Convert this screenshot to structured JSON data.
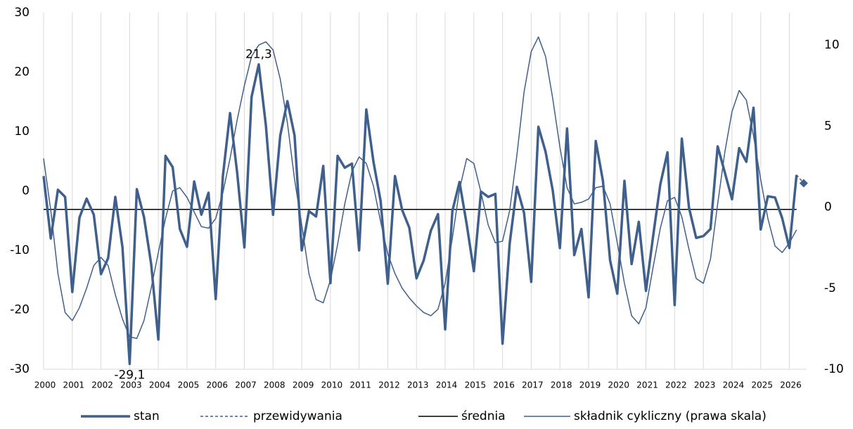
{
  "chart_data": {
    "type": "line",
    "x": [
      2000,
      2000.25,
      2000.5,
      2000.75,
      2001,
      2001.25,
      2001.5,
      2001.75,
      2002,
      2002.25,
      2002.5,
      2002.75,
      2003,
      2003.25,
      2003.5,
      2003.75,
      2004,
      2004.25,
      2004.5,
      2004.75,
      2005,
      2005.25,
      2005.5,
      2005.75,
      2006,
      2006.25,
      2006.5,
      2006.75,
      2007,
      2007.25,
      2007.5,
      2007.75,
      2008,
      2008.25,
      2008.5,
      2008.75,
      2009,
      2009.25,
      2009.5,
      2009.75,
      2010,
      2010.25,
      2010.5,
      2010.75,
      2011,
      2011.25,
      2011.5,
      2011.75,
      2012,
      2012.25,
      2012.5,
      2012.75,
      2013,
      2013.25,
      2013.5,
      2013.75,
      2014,
      2014.25,
      2014.5,
      2014.75,
      2015,
      2015.25,
      2015.5,
      2015.75,
      2016,
      2016.25,
      2016.5,
      2016.75,
      2017,
      2017.25,
      2017.5,
      2017.75,
      2018,
      2018.25,
      2018.5,
      2018.75,
      2019,
      2019.25,
      2019.5,
      2019.75,
      2020,
      2020.25,
      2020.5,
      2020.75,
      2021,
      2021.25,
      2021.5,
      2021.75,
      2022,
      2022.25,
      2022.5,
      2022.75,
      2023,
      2023.25,
      2023.5,
      2023.75,
      2024,
      2024.25,
      2024.5,
      2024.75,
      2025,
      2025.25,
      2025.5,
      2025.75,
      2026,
      2026.25,
      2026.5
    ],
    "series": [
      {
        "name": "stan",
        "color": "#3f5f8c",
        "width": 3.5,
        "values": [
          2.5,
          -8,
          0.2,
          -1,
          -17,
          -4.5,
          -1.3,
          -4,
          -14,
          -11.3,
          -1,
          -9.5,
          -29.1,
          0.3,
          -4.4,
          -12.3,
          -25,
          5.9,
          4,
          -6.4,
          -9.4,
          1.6,
          -4,
          -0.3,
          -18.2,
          2.5,
          13.1,
          3,
          -9.5,
          15.8,
          21.3,
          11,
          -4,
          9.3,
          15.1,
          9.3,
          -10,
          -3.4,
          -4.3,
          4.2,
          -15.5,
          5.9,
          3.9,
          4.6,
          -10,
          13.7,
          4.9,
          -1.7,
          -15.6,
          2.5,
          -3.2,
          -6.2,
          -14.7,
          -11.7,
          -6.7,
          -3.9,
          -23.3,
          -3.4,
          1.5,
          -5.6,
          -13.5,
          -0.1,
          -1,
          -0.5,
          -25.7,
          -8.8,
          0.7,
          -3.7,
          -15.3,
          10.8,
          6.6,
          0.1,
          -9.6,
          10.5,
          -10.8,
          -6.4,
          -17.9,
          8.4,
          1.7,
          -11.7,
          -17.3,
          1.7,
          -12.3,
          -5.2,
          -16.8,
          -7.6,
          1.1,
          6.5,
          -19.2,
          8.8,
          -2.8,
          -7.9,
          -7.6,
          -6.4,
          7.5,
          3.1,
          -1.4,
          7.2,
          4.9,
          14,
          -6.5,
          -0.9,
          -1.1,
          -4.6,
          -9.6,
          2.7,
          null
        ]
      },
      {
        "name": "przewidywania",
        "color": "#3f5f8c",
        "width": 1.5,
        "dashed": true,
        "marker": "diamond",
        "values": [
          null,
          null,
          null,
          null,
          null,
          null,
          null,
          null,
          null,
          null,
          null,
          null,
          null,
          null,
          null,
          null,
          null,
          null,
          null,
          null,
          null,
          null,
          null,
          null,
          null,
          null,
          null,
          null,
          null,
          null,
          null,
          null,
          null,
          null,
          null,
          null,
          null,
          null,
          null,
          null,
          null,
          null,
          null,
          null,
          null,
          null,
          null,
          null,
          null,
          null,
          null,
          null,
          null,
          null,
          null,
          null,
          null,
          null,
          null,
          null,
          null,
          null,
          null,
          null,
          null,
          null,
          null,
          null,
          null,
          null,
          null,
          null,
          null,
          null,
          null,
          null,
          null,
          null,
          null,
          null,
          null,
          null,
          null,
          null,
          null,
          null,
          null,
          null,
          null,
          null,
          null,
          null,
          null,
          null,
          null,
          null,
          null,
          null,
          null,
          null,
          null,
          null,
          null,
          null,
          null,
          2.7,
          1.3
        ]
      },
      {
        "name": "średnia",
        "color": "#000000",
        "width": 1.5,
        "values": [
          -3.1,
          -3.1,
          -3.1,
          -3.1,
          -3.1,
          -3.1,
          -3.1,
          -3.1,
          -3.1,
          -3.1,
          -3.1,
          -3.1,
          -3.1,
          -3.1,
          -3.1,
          -3.1,
          -3.1,
          -3.1,
          -3.1,
          -3.1,
          -3.1,
          -3.1,
          -3.1,
          -3.1,
          -3.1,
          -3.1,
          -3.1,
          -3.1,
          -3.1,
          -3.1,
          -3.1,
          -3.1,
          -3.1,
          -3.1,
          -3.1,
          -3.1,
          -3.1,
          -3.1,
          -3.1,
          -3.1,
          -3.1,
          -3.1,
          -3.1,
          -3.1,
          -3.1,
          -3.1,
          -3.1,
          -3.1,
          -3.1,
          -3.1,
          -3.1,
          -3.1,
          -3.1,
          -3.1,
          -3.1,
          -3.1,
          -3.1,
          -3.1,
          -3.1,
          -3.1,
          -3.1,
          -3.1,
          -3.1,
          -3.1,
          -3.1,
          -3.1,
          -3.1,
          -3.1,
          -3.1,
          -3.1,
          -3.1,
          -3.1,
          -3.1,
          -3.1,
          -3.1,
          -3.1,
          -3.1,
          -3.1,
          -3.1,
          -3.1,
          -3.1,
          -3.1,
          -3.1,
          -3.1,
          -3.1,
          -3.1,
          -3.1,
          -3.1,
          -3.1,
          -3.1,
          -3.1,
          -3.1,
          -3.1,
          -3.1,
          -3.1,
          -3.1,
          -3.1,
          -3.1,
          -3.1,
          -3.1,
          -3.1,
          -3.1,
          -3.1,
          -3.1,
          -3.1,
          -3.1,
          null
        ]
      },
      {
        "name": "składnik cykliczny (prawa skala)",
        "color": "#3f5f8c",
        "width": 1.5,
        "axis": "y2",
        "values": [
          3.0,
          -0.2,
          -4.1,
          -6.5,
          -7.0,
          -6.2,
          -5.0,
          -3.6,
          -3.1,
          -3.6,
          -5.4,
          -6.9,
          -8.0,
          -8.1,
          -7.0,
          -5.0,
          -2.8,
          -0.7,
          1.0,
          1.2,
          0.6,
          -0.3,
          -1.2,
          -1.3,
          -0.7,
          0.9,
          3.0,
          5.4,
          7.5,
          9.3,
          10.0,
          10.2,
          9.7,
          7.9,
          5.2,
          1.7,
          -1.1,
          -4.1,
          -5.7,
          -5.9,
          -4.5,
          -2.3,
          0.2,
          2.2,
          3.1,
          2.7,
          1.3,
          -0.9,
          -2.9,
          -4.1,
          -5.0,
          -5.6,
          -6.1,
          -6.5,
          -6.7,
          -6.3,
          -4.7,
          -1.9,
          1.1,
          3.0,
          2.7,
          0.9,
          -1.1,
          -2.2,
          -2.1,
          -0.2,
          3.2,
          7.1,
          9.6,
          10.5,
          9.3,
          6.7,
          3.7,
          1.2,
          0.2,
          0.3,
          0.5,
          1.2,
          1.3,
          0.2,
          -2.2,
          -4.7,
          -6.7,
          -7.2,
          -6.2,
          -3.7,
          -1.3,
          0.4,
          0.6,
          -0.6,
          -2.6,
          -4.4,
          -4.7,
          -3.2,
          0.2,
          3.4,
          5.9,
          7.2,
          6.6,
          4.4,
          1.7,
          -0.7,
          -2.4,
          -2.8,
          -2.2,
          -1.4,
          null
        ]
      }
    ],
    "annotations": [
      {
        "label": "21,3",
        "x": 2007.5,
        "y": 21.3
      },
      {
        "label": "-29,1",
        "x": 2003,
        "y": -29.1
      }
    ],
    "xlim": [
      2000,
      2026.6
    ],
    "xticks": [
      2000,
      2001,
      2002,
      2003,
      2004,
      2005,
      2006,
      2007,
      2008,
      2009,
      2010,
      2011,
      2012,
      2013,
      2014,
      2015,
      2016,
      2017,
      2018,
      2019,
      2020,
      2021,
      2022,
      2023,
      2024,
      2025,
      2026
    ],
    "ylim": [
      -30,
      30
    ],
    "yticks": [
      -30,
      -20,
      -10,
      0,
      10,
      20,
      30
    ],
    "y2lim": [
      -10,
      12
    ],
    "y2ticks": [
      -10,
      -5,
      0,
      5,
      10
    ],
    "grid": "x",
    "legend": "bottom"
  }
}
